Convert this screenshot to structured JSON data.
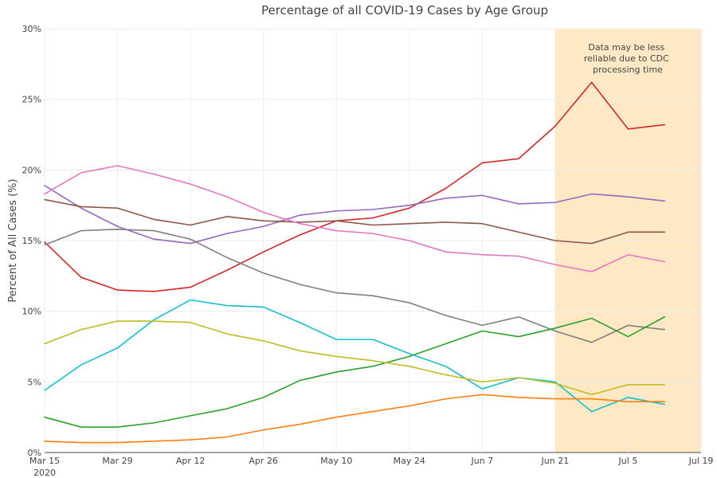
{
  "chart_data": {
    "type": "line",
    "title": "Percentage of all COVID-19 Cases by Age Group",
    "xlabel": "",
    "ylabel": "Percent of All Cases (%)",
    "x_ticks": [
      {
        "date": "2020-03-15",
        "label": "Mar 15",
        "sublabel": "2020"
      },
      {
        "date": "2020-03-29",
        "label": "Mar 29"
      },
      {
        "date": "2020-04-12",
        "label": "Apr 12"
      },
      {
        "date": "2020-04-26",
        "label": "Apr 26"
      },
      {
        "date": "2020-05-10",
        "label": "May 10"
      },
      {
        "date": "2020-05-24",
        "label": "May 24"
      },
      {
        "date": "2020-06-07",
        "label": "Jun 7"
      },
      {
        "date": "2020-06-21",
        "label": "Jun 21"
      },
      {
        "date": "2020-07-05",
        "label": "Jul 5"
      },
      {
        "date": "2020-07-19",
        "label": "Jul 19"
      }
    ],
    "xlim": [
      "2020-03-15",
      "2020-07-19"
    ],
    "ylim": [
      0,
      30
    ],
    "y_ticks": [
      0,
      5,
      10,
      15,
      20,
      25,
      30
    ],
    "y_tick_suffix": "%",
    "grid": true,
    "x": [
      "2020-03-15",
      "2020-03-22",
      "2020-03-29",
      "2020-04-05",
      "2020-04-12",
      "2020-04-19",
      "2020-04-26",
      "2020-05-03",
      "2020-05-10",
      "2020-05-17",
      "2020-05-24",
      "2020-05-31",
      "2020-06-07",
      "2020-06-14",
      "2020-06-21",
      "2020-06-28",
      "2020-07-05",
      "2020-07-12"
    ],
    "series": [
      {
        "color": "#d62728",
        "values": [
          14.9,
          12.4,
          11.5,
          11.4,
          11.7,
          12.9,
          14.2,
          15.4,
          16.4,
          16.6,
          17.3,
          18.7,
          20.5,
          20.8,
          23.1,
          26.2,
          22.9,
          23.2
        ]
      },
      {
        "color": "#9467bd",
        "values": [
          18.9,
          17.3,
          16.0,
          15.1,
          14.8,
          15.5,
          16.0,
          16.8,
          17.1,
          17.2,
          17.5,
          18.0,
          18.2,
          17.6,
          17.7,
          18.3,
          18.1,
          17.8
        ]
      },
      {
        "color": "#8c564b",
        "values": [
          17.9,
          17.4,
          17.3,
          16.5,
          16.1,
          16.7,
          16.4,
          16.3,
          16.4,
          16.1,
          16.2,
          16.3,
          16.2,
          15.6,
          15.0,
          14.8,
          15.6,
          15.6
        ]
      },
      {
        "color": "#e377c2",
        "values": [
          18.3,
          19.8,
          20.3,
          19.7,
          19.0,
          18.1,
          17.0,
          16.2,
          15.7,
          15.5,
          15.0,
          14.2,
          14.0,
          13.9,
          13.3,
          12.8,
          14.0,
          13.5
        ]
      },
      {
        "color": "#7f7f7f",
        "values": [
          14.7,
          15.7,
          15.8,
          15.7,
          15.1,
          13.8,
          12.7,
          11.9,
          11.3,
          11.1,
          10.6,
          9.7,
          9.0,
          9.6,
          8.6,
          7.8,
          9.0,
          8.7
        ]
      },
      {
        "color": "#2ca02c",
        "values": [
          2.5,
          1.8,
          1.8,
          2.1,
          2.6,
          3.1,
          3.9,
          5.1,
          5.7,
          6.1,
          6.8,
          7.7,
          8.6,
          8.2,
          8.8,
          9.5,
          8.2,
          9.6
        ]
      },
      {
        "color": "#17becf",
        "values": [
          4.4,
          6.2,
          7.4,
          9.4,
          10.8,
          10.4,
          10.3,
          9.2,
          8.0,
          8.0,
          7.0,
          6.1,
          4.5,
          5.3,
          5.0,
          2.9,
          3.9,
          3.4
        ]
      },
      {
        "color": "#bcbd22",
        "values": [
          7.7,
          8.7,
          9.3,
          9.3,
          9.2,
          8.4,
          7.9,
          7.2,
          6.8,
          6.5,
          6.1,
          5.5,
          5.0,
          5.3,
          4.9,
          4.1,
          4.8,
          4.8
        ]
      },
      {
        "color": "#ff7f0e",
        "values": [
          0.8,
          0.7,
          0.7,
          0.8,
          0.9,
          1.1,
          1.6,
          2.0,
          2.5,
          2.9,
          3.3,
          3.8,
          4.1,
          3.9,
          3.8,
          3.8,
          3.6,
          3.6
        ]
      }
    ],
    "annotation": {
      "text_lines": [
        "Data may be less",
        "reliable due to CDC",
        "processing time"
      ],
      "shade_from": "2020-06-21",
      "shade_to": "2020-07-19",
      "shade_color": "#ffe8c4"
    }
  }
}
